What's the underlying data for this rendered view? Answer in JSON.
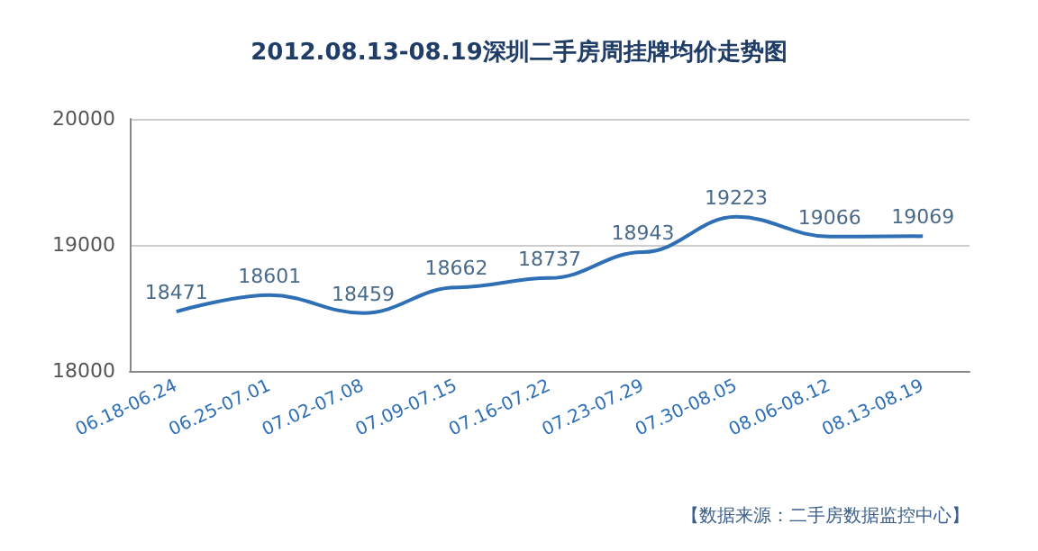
{
  "chart_data": {
    "type": "line",
    "title": "2012.08.13-08.19深圳二手房周挂牌均价走势图",
    "categories": [
      "06.18-06.24",
      "06.25-07.01",
      "07.02-07.08",
      "07.09-07.15",
      "07.16-07.22",
      "07.23-07.29",
      "07.30-08.05",
      "08.06-08.12",
      "08.13-08.19"
    ],
    "series": [
      {
        "color": "#2f6fb5",
        "values": [
          18471,
          18601,
          18459,
          18662,
          18737,
          18943,
          19223,
          19066,
          19069
        ]
      }
    ],
    "ylim": [
      18000,
      20000
    ],
    "yticks": [
      18000,
      19000,
      20000
    ],
    "grid": "y",
    "data_labels": true,
    "annotations": [
      "【数据来源：二手房数据监控中心】"
    ]
  }
}
